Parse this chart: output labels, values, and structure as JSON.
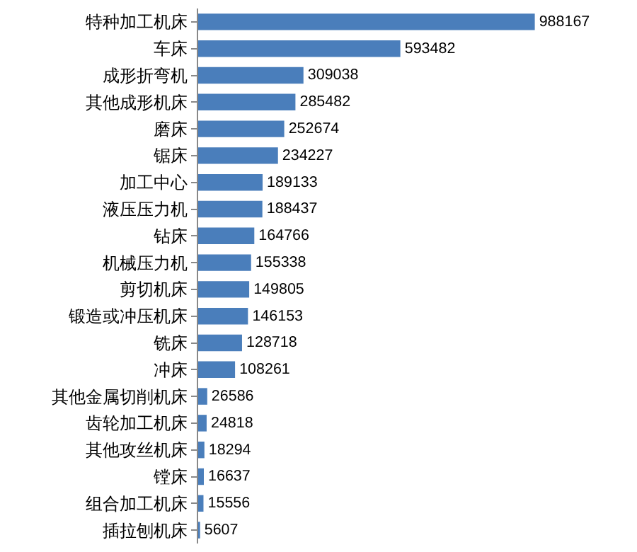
{
  "chart_data": {
    "type": "bar",
    "orientation": "horizontal",
    "data_labels": true,
    "categories": [
      "特种加工机床",
      "车床",
      "成形折弯机",
      "其他成形机床",
      "磨床",
      "锯床",
      "加工中心",
      "液压压力机",
      "钻床",
      "机械压力机",
      "剪切机床",
      "锻造或冲压机床",
      "铣床",
      "冲床",
      "其他金属切削机床",
      "齿轮加工机床",
      "其他攻丝机床",
      "镗床",
      "组合加工机床",
      "插拉刨机床"
    ],
    "values": [
      988167,
      593482,
      309038,
      285482,
      252674,
      234227,
      189133,
      188437,
      164766,
      155338,
      149805,
      146153,
      128718,
      108261,
      26586,
      24818,
      18294,
      16637,
      15556,
      5607
    ],
    "color": "#4a7ebb"
  }
}
